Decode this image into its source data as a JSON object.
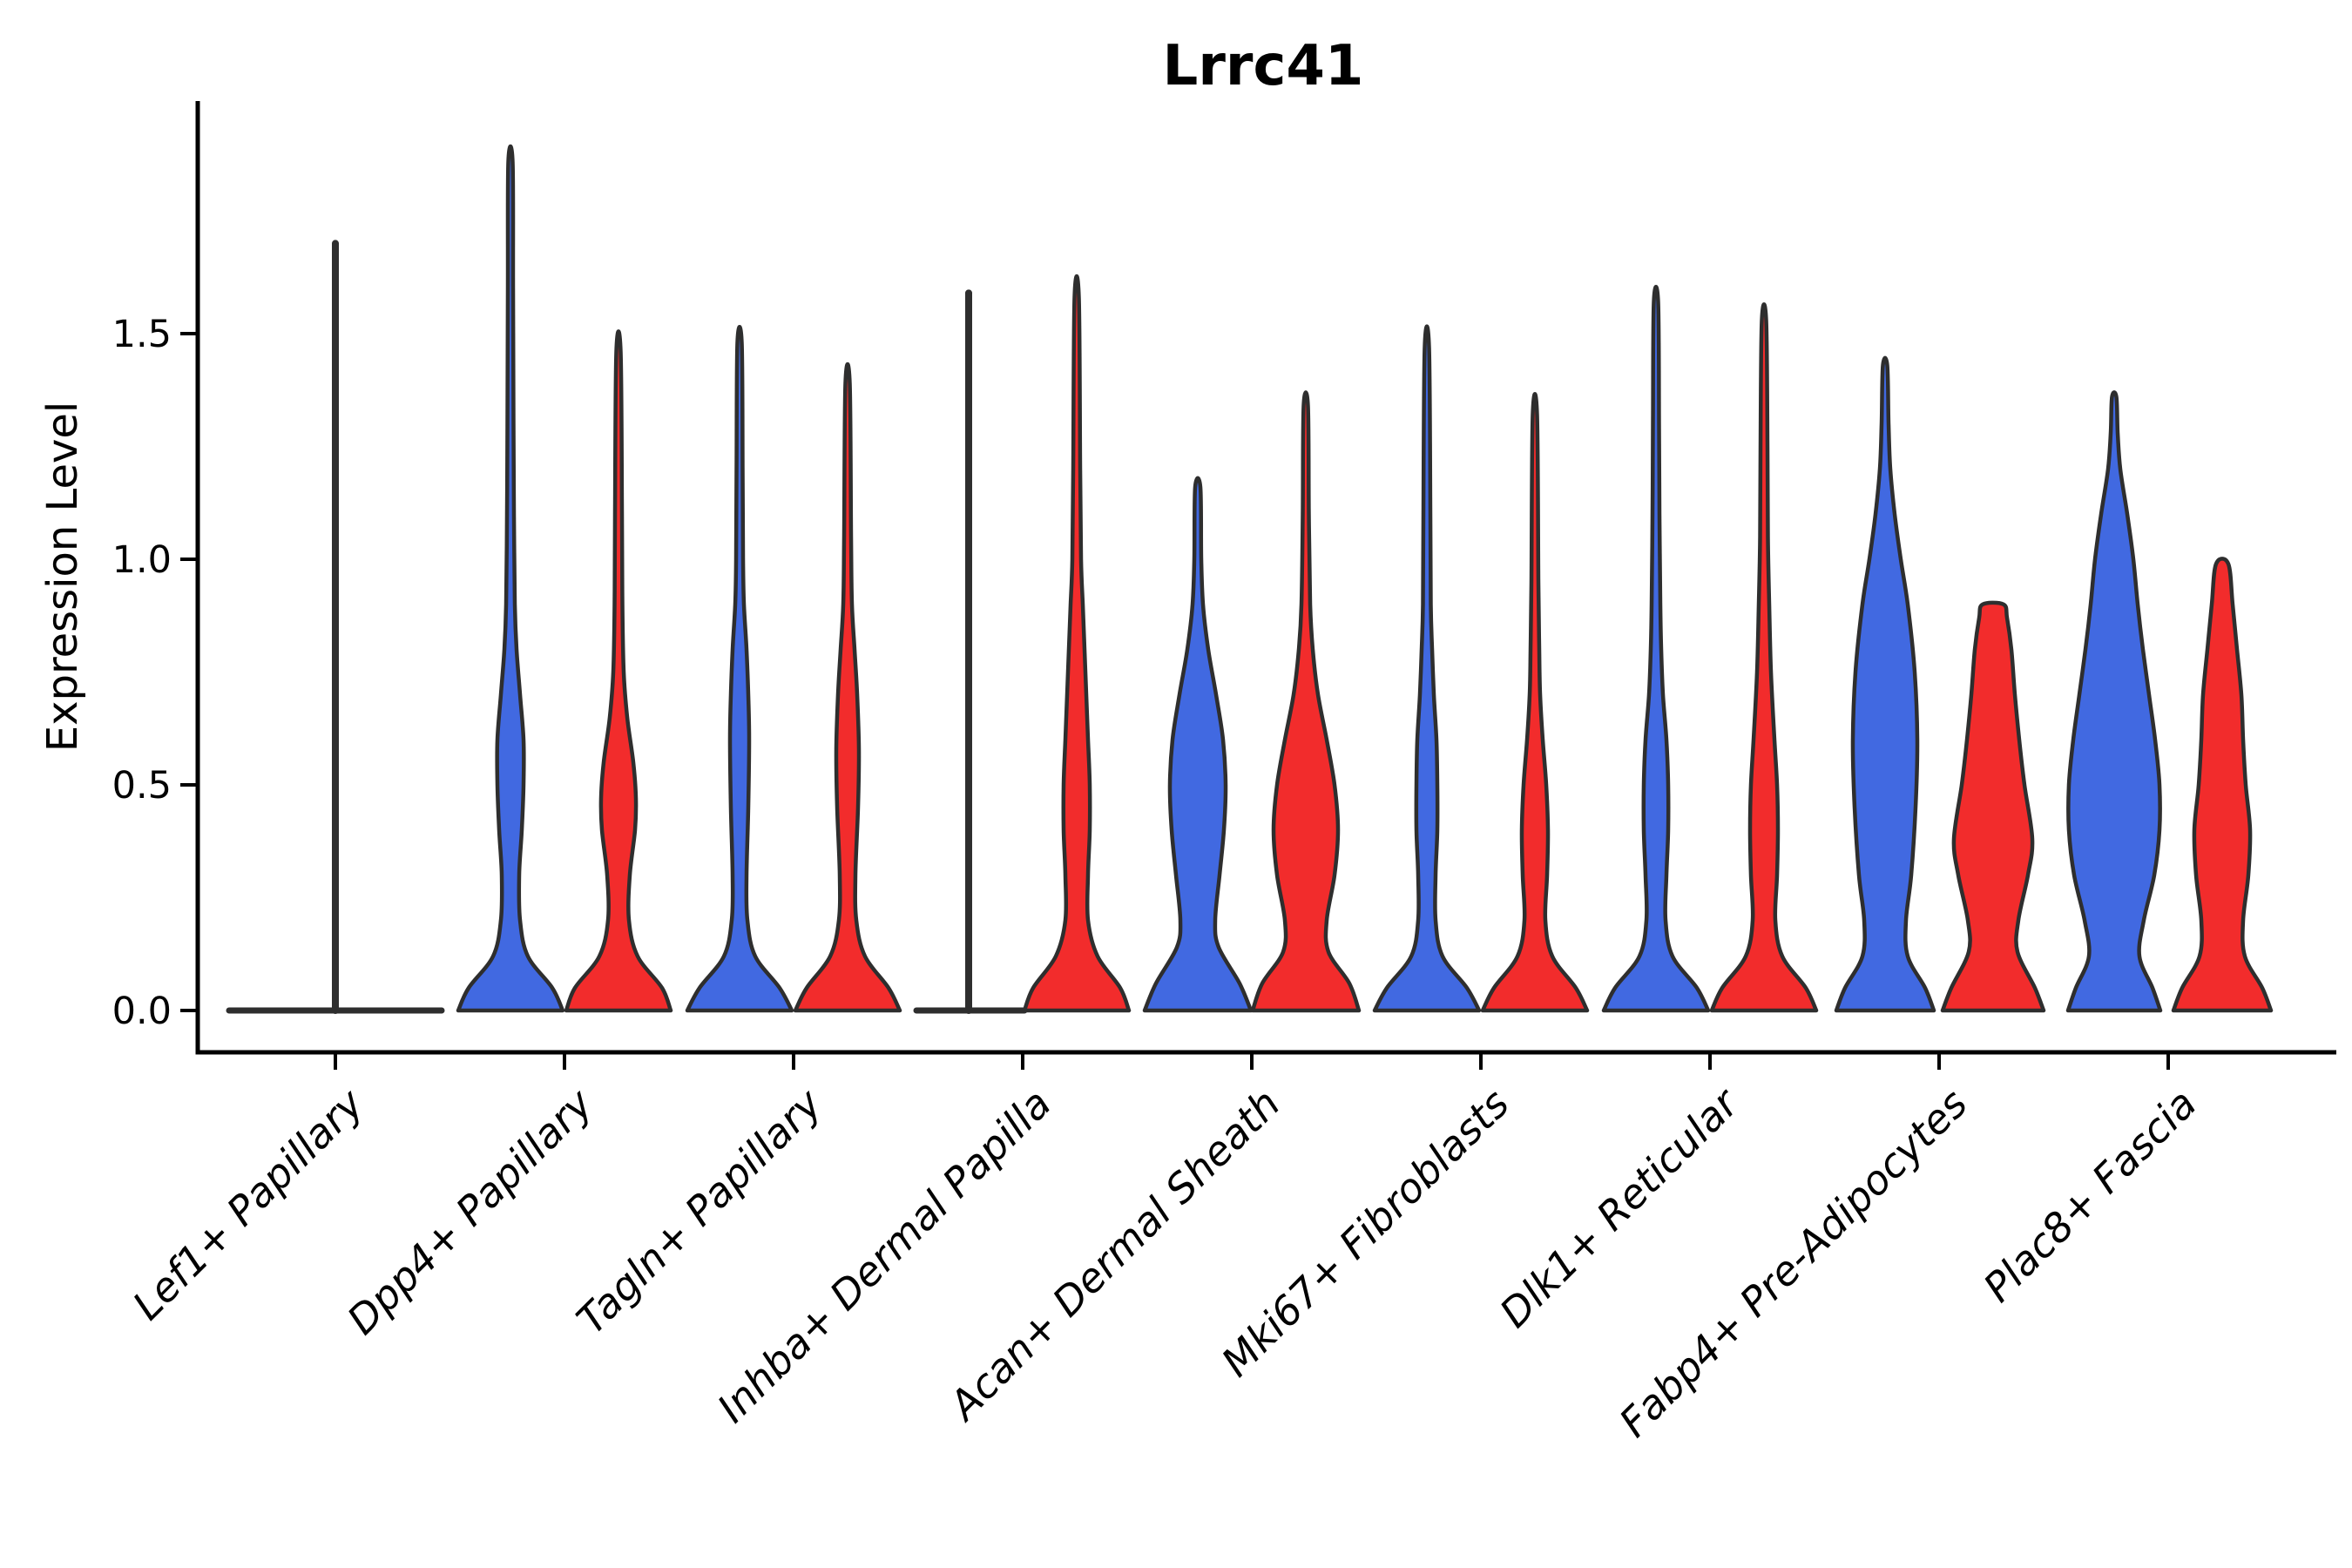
{
  "figure": {
    "title": "Lrrc41",
    "background": "#FFFFFF"
  },
  "colors": {
    "left_violin_fill": "#4169E1",
    "right_violin_fill": "#F22C2C",
    "violin_outline": "#2E2E2E",
    "axis_line": "#000000",
    "text": "#000000"
  },
  "chart_data": {
    "type": "violin",
    "title": "Lrrc41",
    "ylabel": "Expression Level",
    "xlabel": "",
    "grid": false,
    "legend": "none",
    "split_violins_per_category": 2,
    "split_colors": {
      "left": "#4169E1",
      "right": "#F22C2C"
    },
    "ylim": [
      0,
      1.95
    ],
    "yticks": [
      {
        "label": "0.0",
        "value": 0.0
      },
      {
        "label": "0.5",
        "value": 0.5
      },
      {
        "label": "1.0",
        "value": 1.0
      },
      {
        "label": "1.5",
        "value": 1.5
      }
    ],
    "profile_format": "[expression_value, density_half_width_px]",
    "categories": [
      {
        "label": "Lef1+ Papillary",
        "center_spike_max": 1.7,
        "left": {
          "shape": "flat",
          "max": 0,
          "profile": null
        },
        "right": {
          "shape": "flat",
          "max": 0,
          "profile": null
        }
      },
      {
        "label": "Dpp4+ Papillary",
        "left": {
          "shape": "curve",
          "max": 1.88,
          "profile": [
            [
              0,
              60
            ],
            [
              0.05,
              48
            ],
            [
              0.12,
              20
            ],
            [
              0.2,
              11
            ],
            [
              0.3,
              10
            ],
            [
              0.4,
              13
            ],
            [
              0.5,
              15
            ],
            [
              0.6,
              15
            ],
            [
              0.7,
              11
            ],
            [
              0.8,
              7
            ],
            [
              0.9,
              5
            ],
            [
              1.1,
              4
            ],
            [
              1.3,
              3.5
            ],
            [
              1.6,
              3
            ],
            [
              1.88,
              2.5
            ]
          ]
        },
        "right": {
          "shape": "curve",
          "max": 1.46,
          "profile": [
            [
              0,
              60
            ],
            [
              0.05,
              50
            ],
            [
              0.12,
              22
            ],
            [
              0.2,
              12
            ],
            [
              0.3,
              13
            ],
            [
              0.4,
              19
            ],
            [
              0.47,
              20
            ],
            [
              0.55,
              17
            ],
            [
              0.65,
              10
            ],
            [
              0.75,
              6
            ],
            [
              0.9,
              4.5
            ],
            [
              1.1,
              4
            ],
            [
              1.46,
              2.5
            ]
          ]
        }
      },
      {
        "label": "Tagln+ Papillary",
        "left": {
          "shape": "curve",
          "max": 1.48,
          "profile": [
            [
              0,
              60
            ],
            [
              0.05,
              46
            ],
            [
              0.12,
              18
            ],
            [
              0.2,
              9
            ],
            [
              0.3,
              8
            ],
            [
              0.45,
              10
            ],
            [
              0.6,
              11
            ],
            [
              0.7,
              10
            ],
            [
              0.8,
              8
            ],
            [
              0.9,
              5
            ],
            [
              1.0,
              4
            ],
            [
              1.2,
              3.5
            ],
            [
              1.48,
              2.5
            ]
          ]
        },
        "right": {
          "shape": "curve",
          "max": 1.39,
          "profile": [
            [
              0,
              60
            ],
            [
              0.05,
              47
            ],
            [
              0.12,
              20
            ],
            [
              0.2,
              10
            ],
            [
              0.3,
              9
            ],
            [
              0.45,
              12
            ],
            [
              0.58,
              13
            ],
            [
              0.7,
              11
            ],
            [
              0.8,
              8
            ],
            [
              0.9,
              5
            ],
            [
              1.05,
              4
            ],
            [
              1.39,
              2.5
            ]
          ]
        }
      },
      {
        "label": "Inhba+ Dermal Papilla",
        "left": {
          "shape": "flat",
          "max": 1.59,
          "profile": null
        },
        "right": {
          "shape": "curve",
          "max": 1.58,
          "profile": [
            [
              0,
              60
            ],
            [
              0.05,
              50
            ],
            [
              0.12,
              24
            ],
            [
              0.2,
              13
            ],
            [
              0.3,
              13
            ],
            [
              0.4,
              15
            ],
            [
              0.5,
              15
            ],
            [
              0.6,
              13
            ],
            [
              0.7,
              11
            ],
            [
              0.8,
              9
            ],
            [
              0.9,
              7
            ],
            [
              1.0,
              5
            ],
            [
              1.2,
              4
            ],
            [
              1.58,
              2.5
            ]
          ]
        }
      },
      {
        "label": "Acan+ Dermal Sheath",
        "left": {
          "shape": "curve",
          "max": 1.16,
          "profile": [
            [
              0,
              61
            ],
            [
              0.06,
              48
            ],
            [
              0.14,
              24
            ],
            [
              0.2,
              20
            ],
            [
              0.3,
              25
            ],
            [
              0.4,
              30
            ],
            [
              0.5,
              32
            ],
            [
              0.6,
              29
            ],
            [
              0.7,
              21
            ],
            [
              0.8,
              12
            ],
            [
              0.9,
              6
            ],
            [
              1.0,
              4
            ],
            [
              1.16,
              3
            ]
          ]
        },
        "right": {
          "shape": "curve",
          "max": 1.34,
          "profile": [
            [
              0,
              61
            ],
            [
              0.06,
              50
            ],
            [
              0.13,
              26
            ],
            [
              0.2,
              24
            ],
            [
              0.3,
              33
            ],
            [
              0.4,
              37
            ],
            [
              0.5,
              33
            ],
            [
              0.6,
              24
            ],
            [
              0.7,
              14
            ],
            [
              0.8,
              8
            ],
            [
              0.9,
              5
            ],
            [
              1.1,
              3.5
            ],
            [
              1.34,
              2.5
            ]
          ]
        }
      },
      {
        "label": "Mki67+ Fibroblasts",
        "left": {
          "shape": "curve",
          "max": 1.47,
          "profile": [
            [
              0,
              60
            ],
            [
              0.05,
              46
            ],
            [
              0.12,
              18
            ],
            [
              0.2,
              10
            ],
            [
              0.3,
              10
            ],
            [
              0.4,
              12
            ],
            [
              0.5,
              12
            ],
            [
              0.6,
              11
            ],
            [
              0.7,
              8
            ],
            [
              0.8,
              6
            ],
            [
              0.9,
              4.5
            ],
            [
              1.1,
              4
            ],
            [
              1.47,
              2.5
            ]
          ]
        },
        "right": {
          "shape": "curve",
          "max": 1.32,
          "profile": [
            [
              0,
              60
            ],
            [
              0.05,
              47
            ],
            [
              0.12,
              20
            ],
            [
              0.2,
              12
            ],
            [
              0.3,
              14
            ],
            [
              0.4,
              15
            ],
            [
              0.5,
              13
            ],
            [
              0.6,
              9
            ],
            [
              0.7,
              6
            ],
            [
              0.8,
              5
            ],
            [
              0.95,
              4
            ],
            [
              1.32,
              2.5
            ]
          ]
        }
      },
      {
        "label": "Dlk1+ Reticular",
        "left": {
          "shape": "curve",
          "max": 1.57,
          "profile": [
            [
              0,
              60
            ],
            [
              0.05,
              47
            ],
            [
              0.12,
              19
            ],
            [
              0.2,
              11
            ],
            [
              0.3,
              12
            ],
            [
              0.4,
              14
            ],
            [
              0.5,
              14
            ],
            [
              0.6,
              12
            ],
            [
              0.7,
              8
            ],
            [
              0.8,
              6
            ],
            [
              0.9,
              5
            ],
            [
              1.1,
              4
            ],
            [
              1.3,
              3.5
            ],
            [
              1.57,
              2.5
            ]
          ]
        },
        "right": {
          "shape": "curve",
          "max": 1.53,
          "profile": [
            [
              0,
              60
            ],
            [
              0.05,
              48
            ],
            [
              0.12,
              21
            ],
            [
              0.2,
              13
            ],
            [
              0.3,
              15
            ],
            [
              0.4,
              16
            ],
            [
              0.5,
              15
            ],
            [
              0.6,
              12
            ],
            [
              0.75,
              8
            ],
            [
              0.9,
              6
            ],
            [
              1.05,
              4.5
            ],
            [
              1.25,
              4
            ],
            [
              1.53,
              2.5
            ]
          ]
        }
      },
      {
        "label": "Fabp4+ Pre-Adipocytes",
        "left": {
          "shape": "curve",
          "max": 1.43,
          "profile": [
            [
              0,
              56
            ],
            [
              0.05,
              46
            ],
            [
              0.12,
              26
            ],
            [
              0.2,
              24
            ],
            [
              0.3,
              30
            ],
            [
              0.45,
              35
            ],
            [
              0.6,
              37
            ],
            [
              0.75,
              34
            ],
            [
              0.9,
              26
            ],
            [
              1.0,
              18
            ],
            [
              1.1,
              11
            ],
            [
              1.2,
              6
            ],
            [
              1.3,
              4
            ],
            [
              1.43,
              2.5
            ]
          ]
        },
        "right": {
          "shape": "blunt",
          "max": 0.9,
          "profile": [
            [
              0,
              58
            ],
            [
              0.05,
              48
            ],
            [
              0.13,
              28
            ],
            [
              0.2,
              29
            ],
            [
              0.3,
              40
            ],
            [
              0.38,
              45
            ],
            [
              0.5,
              36
            ],
            [
              0.6,
              30
            ],
            [
              0.7,
              25
            ],
            [
              0.8,
              21
            ],
            [
              0.87,
              16
            ],
            [
              0.9,
              12
            ]
          ]
        }
      },
      {
        "label": "Plac8+ Fascia",
        "left": {
          "shape": "curve",
          "max": 1.36,
          "profile": [
            [
              0,
              53
            ],
            [
              0.05,
              44
            ],
            [
              0.12,
              29
            ],
            [
              0.2,
              34
            ],
            [
              0.3,
              46
            ],
            [
              0.4,
              52
            ],
            [
              0.5,
              52
            ],
            [
              0.6,
              47
            ],
            [
              0.7,
              40
            ],
            [
              0.8,
              33
            ],
            [
              0.9,
              27
            ],
            [
              1.0,
              22
            ],
            [
              1.1,
              15
            ],
            [
              1.2,
              7
            ],
            [
              1.28,
              4
            ],
            [
              1.36,
              2.5
            ]
          ]
        },
        "right": {
          "shape": "blunt",
          "max": 0.99,
          "profile": [
            [
              0,
              56
            ],
            [
              0.05,
              46
            ],
            [
              0.12,
              26
            ],
            [
              0.2,
              24
            ],
            [
              0.3,
              30
            ],
            [
              0.4,
              32
            ],
            [
              0.5,
              27
            ],
            [
              0.6,
              24
            ],
            [
              0.7,
              22
            ],
            [
              0.8,
              17
            ],
            [
              0.9,
              12
            ],
            [
              0.99,
              7
            ]
          ]
        }
      }
    ]
  }
}
